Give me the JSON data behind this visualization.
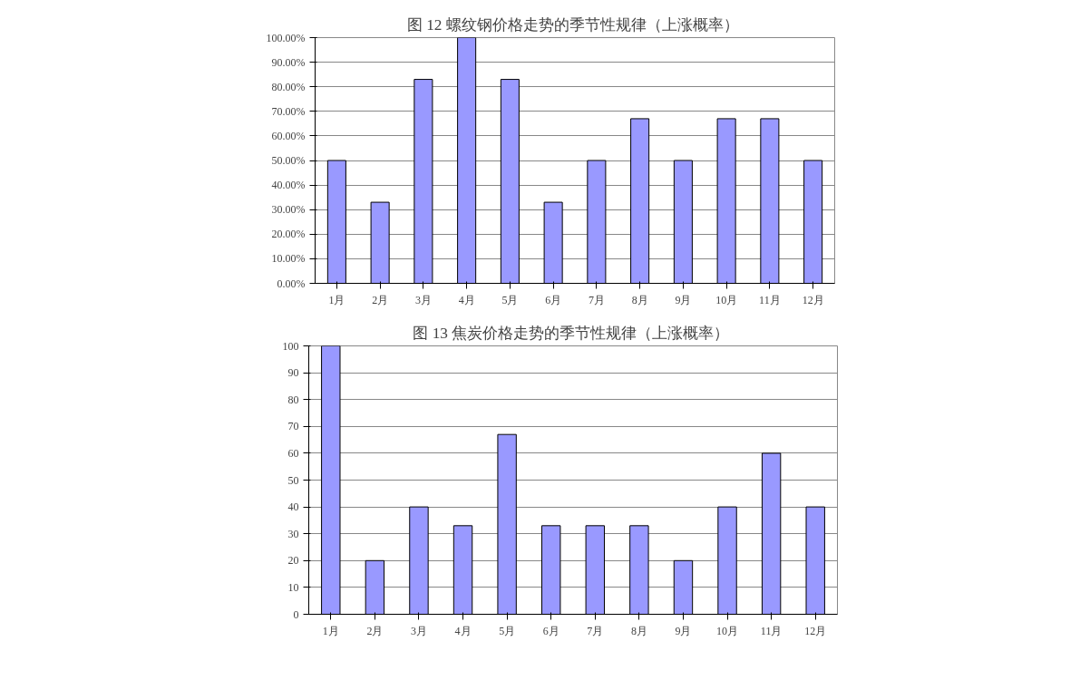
{
  "chart_data": [
    {
      "type": "bar",
      "title": "图 12  螺纹钢价格走势的季节性规律（上涨概率）",
      "categories": [
        "1月",
        "2月",
        "3月",
        "4月",
        "5月",
        "6月",
        "7月",
        "8月",
        "9月",
        "10月",
        "11月",
        "12月"
      ],
      "values": [
        50,
        33,
        83,
        100,
        83,
        33,
        50,
        67,
        50,
        67,
        67,
        50
      ],
      "color": "#9999ff",
      "ylim": [
        0,
        100
      ],
      "yticks": [
        {
          "value": 0,
          "label": "0.00%"
        },
        {
          "value": 10,
          "label": "10.00%"
        },
        {
          "value": 20,
          "label": "20.00%"
        },
        {
          "value": 30,
          "label": "30.00%"
        },
        {
          "value": 40,
          "label": "40.00%"
        },
        {
          "value": 50,
          "label": "50.00%"
        },
        {
          "value": 60,
          "label": "60.00%"
        },
        {
          "value": 70,
          "label": "70.00%"
        },
        {
          "value": 80,
          "label": "80.00%"
        },
        {
          "value": 90,
          "label": "90.00%"
        },
        {
          "value": 100,
          "label": "100.00%"
        }
      ],
      "grid": "y"
    },
    {
      "type": "bar",
      "title": "图 13  焦炭价格走势的季节性规律（上涨概率）",
      "categories": [
        "1月",
        "2月",
        "3月",
        "4月",
        "5月",
        "6月",
        "7月",
        "8月",
        "9月",
        "10月",
        "11月",
        "12月"
      ],
      "values": [
        100,
        20,
        40,
        33,
        67,
        33,
        33,
        33,
        20,
        40,
        60,
        40
      ],
      "color": "#9999ff",
      "ylim": [
        0,
        100
      ],
      "yticks": [
        0,
        10,
        20,
        30,
        40,
        50,
        60,
        70,
        80,
        90,
        100
      ],
      "grid": "y"
    }
  ]
}
